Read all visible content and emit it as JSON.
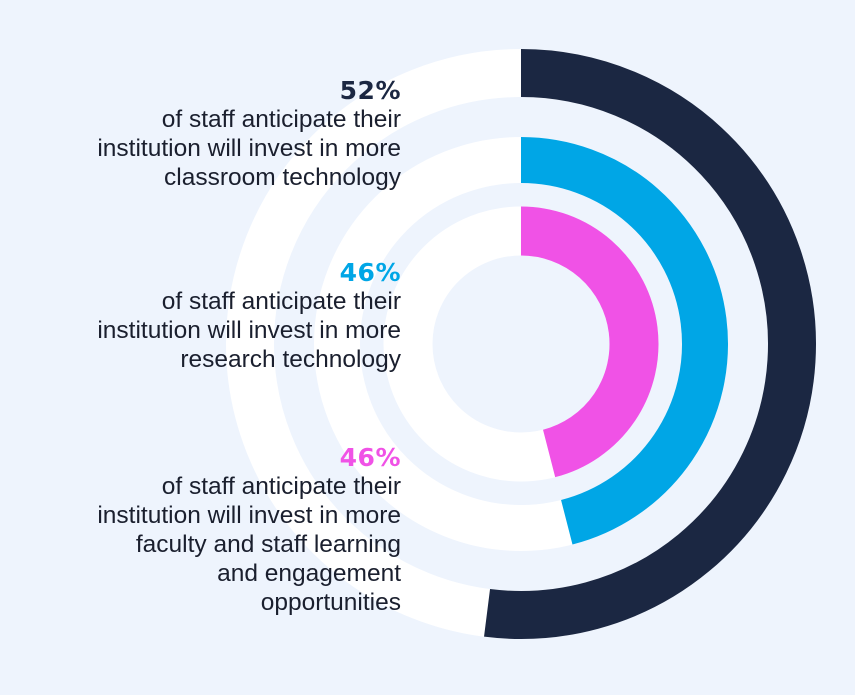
{
  "chart_data": {
    "type": "radial-bar",
    "series": [
      {
        "value": 52,
        "value_label": "52%",
        "description": "of staff anticipate their\ninstitution will invest in more\nclassroom technology",
        "color": "#1b2742"
      },
      {
        "value": 46,
        "value_label": "46%",
        "description": "of staff anticipate their\ninstitution will invest in more\nresearch technology",
        "color": "#00a6e6"
      },
      {
        "value": 46,
        "value_label": "46%",
        "description": "of staff anticipate their\ninstitution will invest in more\nfaculty and staff learning\nand engagement\nopportunities",
        "color": "#f052e6"
      }
    ],
    "max": 100,
    "start": "top",
    "direction": "clockwise"
  },
  "colors": {
    "background": "#eef4fd",
    "track": "#ffffff"
  }
}
